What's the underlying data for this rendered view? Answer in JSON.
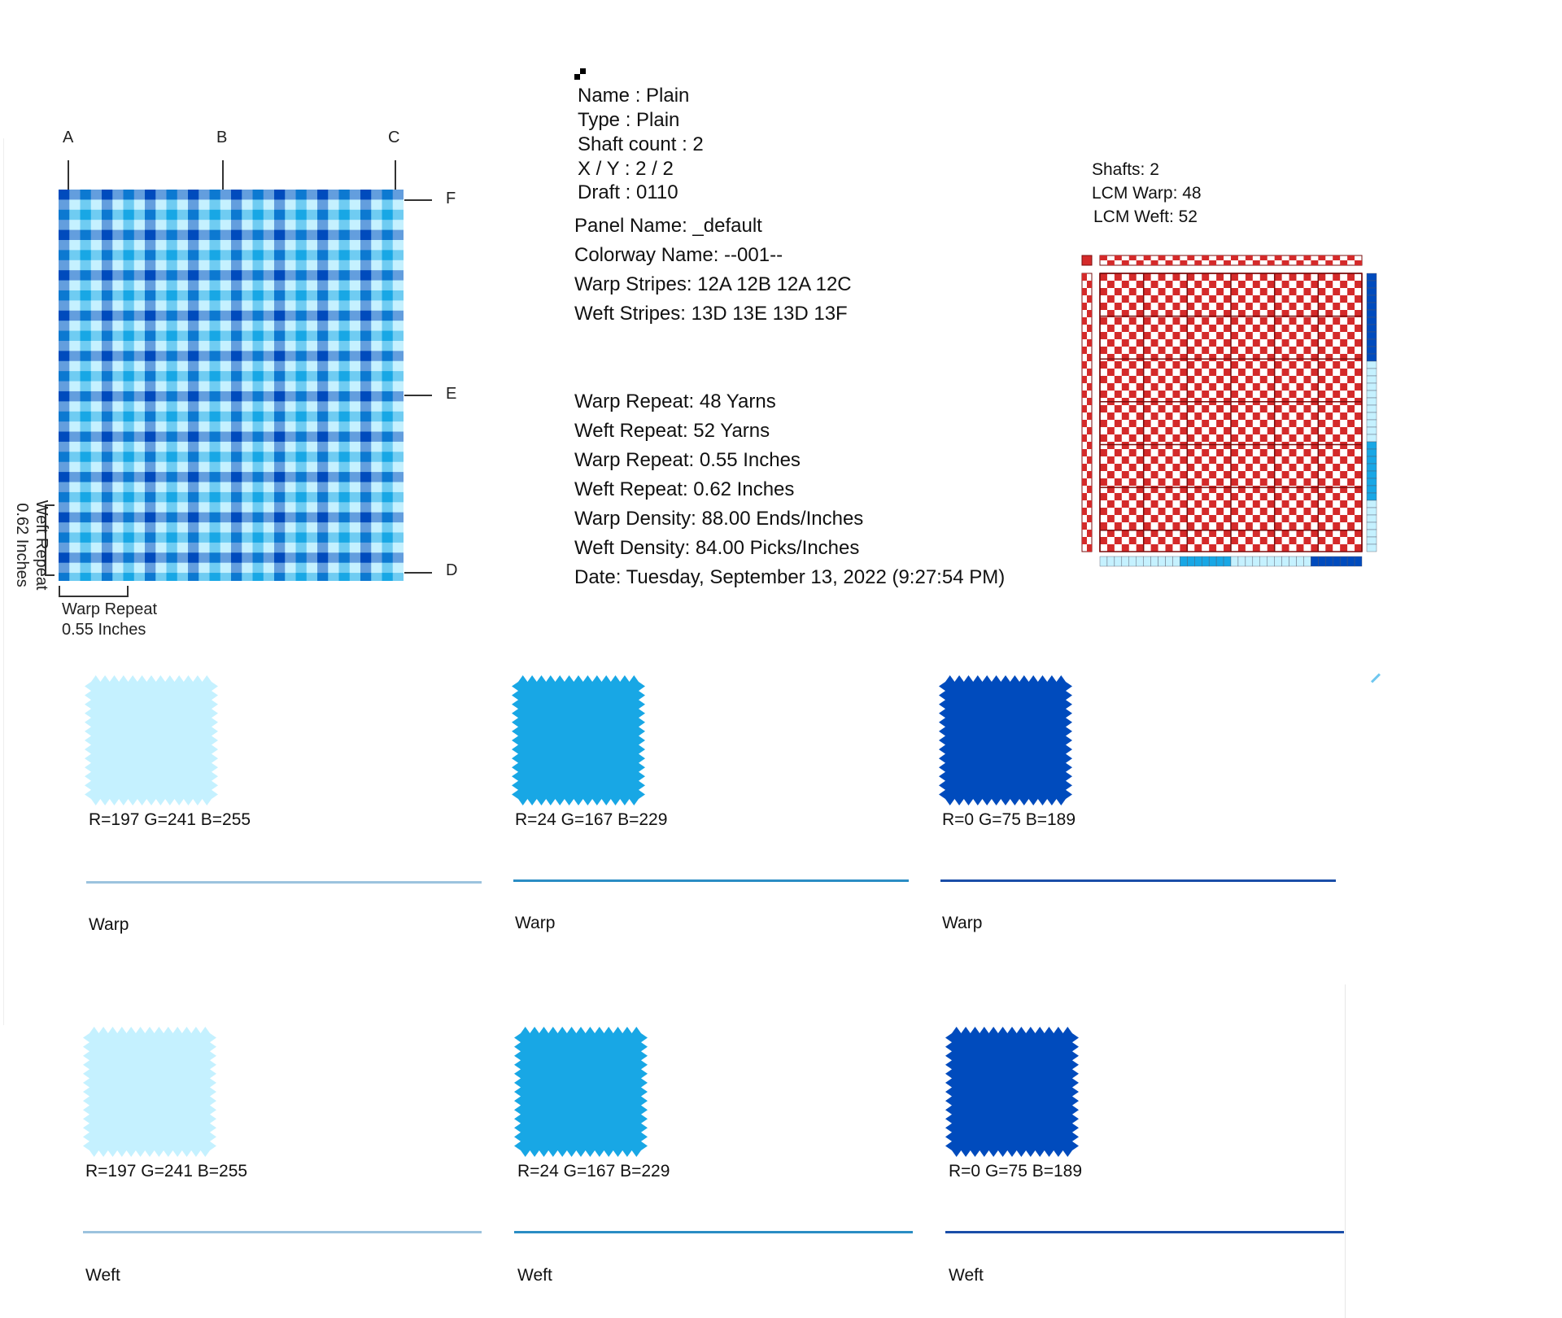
{
  "fabric_preview": {
    "labels": {
      "a": "A",
      "b": "B",
      "c": "C",
      "d": "D",
      "e": "E",
      "f": "F"
    },
    "weft_repeat_label": "Weft Repeat",
    "weft_repeat_value": "0.62 Inches",
    "warp_repeat_label": "Warp Repeat",
    "warp_repeat_value": "0.55 Inches"
  },
  "weave_info": {
    "name": "Name : Plain",
    "type": "Type : Plain",
    "shaft_count": "Shaft count : 2",
    "xy": "X / Y : 2 / 2",
    "draft": "Draft : 0110"
  },
  "panel_info": {
    "panel_name": "Panel Name: _default",
    "colorway_name": "Colorway Name: --001--",
    "warp_stripes": "Warp Stripes: 12A 12B 12A 12C",
    "weft_stripes": "Weft Stripes: 13D 13E 13D 13F"
  },
  "repeat_info": {
    "warp_repeat_yarns": "Warp Repeat: 48 Yarns",
    "weft_repeat_yarns": "Weft Repeat: 52 Yarns",
    "warp_repeat_inches": "Warp Repeat: 0.55 Inches",
    "weft_repeat_inches": "Weft Repeat: 0.62 Inches",
    "warp_density": "Warp Density: 88.00 Ends/Inches",
    "weft_density": "Weft Density: 84.00 Picks/Inches",
    "date": "Date: Tuesday, September 13, 2022 (9:27:54 PM)"
  },
  "draft_info": {
    "shafts": "Shafts: 2",
    "lcm_warp": "LCM Warp: 48",
    "lcm_weft": "LCM Weft: 52"
  },
  "colors": {
    "light": "#c5f1ff",
    "medium": "#18a7e5",
    "dark": "#004bbd",
    "draft_red": "#d42a2a",
    "draft_grid": "#7a0d0d"
  },
  "warp_yarns": [
    {
      "rgb": "R=197 G=241 B=255",
      "role": "Warp",
      "color": "#c5f1ff",
      "rule_color": "#9cc3de"
    },
    {
      "rgb": "R=24 G=167 B=229",
      "role": "Warp",
      "color": "#18a7e5",
      "rule_color": "#2a8dc4"
    },
    {
      "rgb": "R=0 G=75 B=189",
      "role": "Warp",
      "color": "#004bbd",
      "rule_color": "#1a4ea8"
    }
  ],
  "weft_yarns": [
    {
      "rgb": "R=197 G=241 B=255",
      "role": "Weft",
      "color": "#c5f1ff",
      "rule_color": "#9cc3de"
    },
    {
      "rgb": "R=24 G=167 B=229",
      "role": "Weft",
      "color": "#18a7e5",
      "rule_color": "#2a8dc4"
    },
    {
      "rgb": "R=0 G=75 B=189",
      "role": "Weft",
      "color": "#004bbd",
      "rule_color": "#1a4ea8"
    }
  ]
}
